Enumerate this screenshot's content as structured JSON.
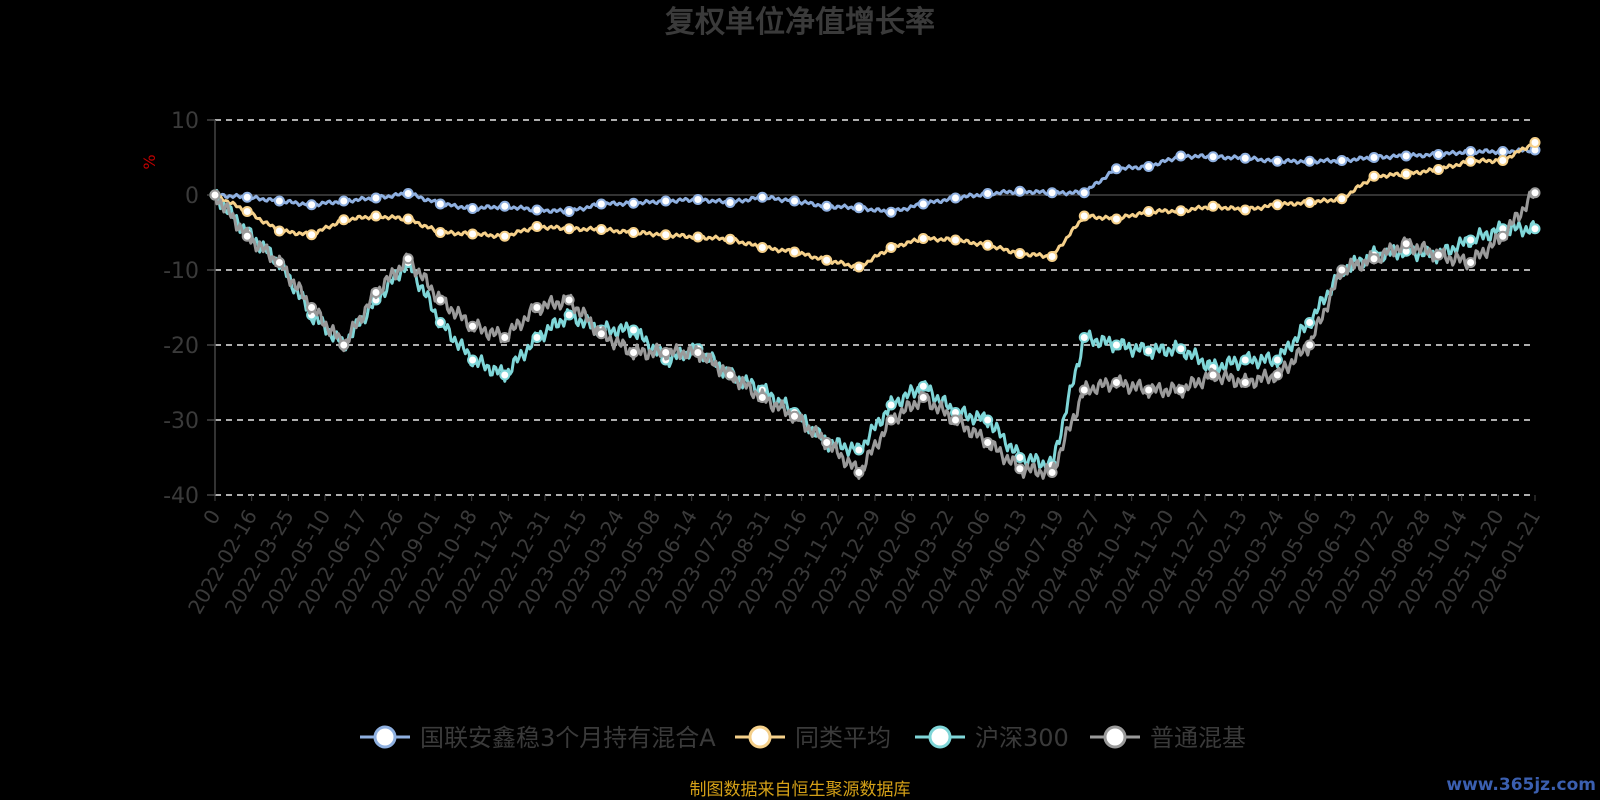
{
  "chart_data": {
    "type": "line",
    "title": "复权单位净值增长率",
    "ylabel": "%",
    "ylim": [
      -40,
      10
    ],
    "yticks": [
      10,
      0,
      -10,
      -20,
      -30,
      -40
    ],
    "grid": true,
    "legend_position": "bottom",
    "x_tick_labels": [
      "0",
      "2022-02-16",
      "2022-03-25",
      "2022-05-10",
      "2022-06-17",
      "2022-07-26",
      "2022-09-01",
      "2022-10-18",
      "2022-11-24",
      "2022-12-31",
      "2023-02-15",
      "2023-03-24",
      "2023-05-08",
      "2023-06-14",
      "2023-07-25",
      "2023-08-31",
      "2023-10-16",
      "2023-11-22",
      "2023-12-29",
      "2024-02-06",
      "2024-03-22",
      "2024-05-06",
      "2024-06-13",
      "2024-07-19",
      "2024-08-27",
      "2024-10-14",
      "2024-11-20",
      "2024-12-27",
      "2025-02-13",
      "2025-03-24",
      "2025-05-06",
      "2025-06-13",
      "2025-07-22",
      "2025-08-28",
      "2025-10-14",
      "2025-11-20",
      "2026-01-21"
    ],
    "series": [
      {
        "name": "国联安鑫稳3个月持有混合A",
        "color": "#8fb0e0",
        "values": [
          0,
          -0.3,
          -0.8,
          -1.3,
          -0.8,
          -0.4,
          0.2,
          -1.2,
          -1.8,
          -1.5,
          -2,
          -2.2,
          -1.2,
          -1.1,
          -0.8,
          -0.6,
          -1,
          -0.3,
          -0.8,
          -1.5,
          -1.7,
          -2.3,
          -1.2,
          -0.4,
          0.2,
          0.5,
          0.3,
          0.3,
          3.5,
          3.8,
          5.2,
          5.1,
          4.9,
          4.5,
          4.5,
          4.6,
          5,
          5.2,
          5.4,
          5.8,
          5.8,
          6
        ]
      },
      {
        "name": "同类平均",
        "color": "#f5d08a",
        "values": [
          0,
          -2.2,
          -4.8,
          -5.3,
          -3.3,
          -2.8,
          -3.2,
          -5,
          -5.2,
          -5.5,
          -4.2,
          -4.5,
          -4.6,
          -5,
          -5.3,
          -5.6,
          -5.9,
          -7,
          -7.6,
          -8.7,
          -9.6,
          -7,
          -5.8,
          -6,
          -6.7,
          -7.8,
          -8.2,
          -2.8,
          -3.2,
          -2.2,
          -2.1,
          -1.5,
          -2,
          -1.3,
          -1,
          -0.5,
          2.5,
          2.8,
          3.4,
          4.5,
          4.6,
          7
        ]
      },
      {
        "name": "沪深300",
        "color": "#7fd6d8",
        "values": [
          0,
          -5,
          -9,
          -16,
          -20,
          -14,
          -9,
          -17,
          -22,
          -24,
          -19,
          -16,
          -18,
          -18,
          -22,
          -20.5,
          -24,
          -26,
          -29,
          -33,
          -34,
          -28,
          -25.5,
          -29,
          -30,
          -35,
          -36,
          -19,
          -20,
          -20.8,
          -20.5,
          -23,
          -22,
          -22,
          -17,
          -10,
          -8,
          -7.5,
          -8,
          -6,
          -4.5,
          -4.5
        ]
      },
      {
        "name": "普通混基",
        "color": "#9a9a9a",
        "values": [
          0,
          -5.5,
          -9,
          -15,
          -20,
          -13,
          -8.5,
          -14,
          -17.5,
          -19,
          -15,
          -14,
          -18.5,
          -21,
          -21,
          -21,
          -24,
          -27,
          -29.5,
          -33,
          -37,
          -30,
          -27,
          -30,
          -33,
          -36.5,
          -37,
          -26,
          -25,
          -26,
          -26,
          -24,
          -25,
          -24,
          -20,
          -10,
          -8.5,
          -6.5,
          -8,
          -9,
          -5.5,
          0.3
        ]
      }
    ]
  },
  "legend_label_stroke": "#aaaaaa",
  "source_note": "制图数据来自恒生聚源数据库",
  "watermark": "www.365jz.com"
}
